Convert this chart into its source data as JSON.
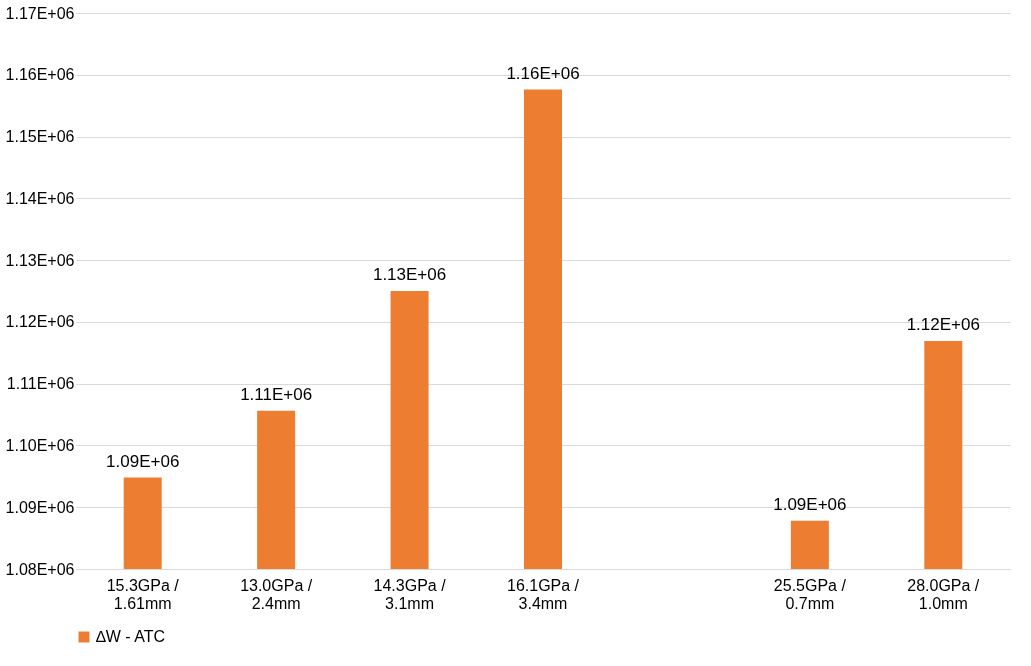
{
  "chart_data": {
    "type": "bar",
    "categories": [
      "15.3GPa /\n1.61mm",
      "13.0GPa /\n2.4mm",
      "14.3GPa /\n3.1mm",
      "16.1GPa /\n3.4mm",
      null,
      "25.5GPa /\n0.7mm",
      "28.0GPa /\n1.0mm"
    ],
    "series": [
      {
        "name": "∆W - ATC",
        "color": "#ed7d31",
        "values": [
          1094800,
          1105600,
          1125000,
          1157600,
          null,
          1087800,
          1116900
        ],
        "value_labels": [
          "1.09E+06",
          "1.11E+06",
          "1.13E+06",
          "1.16E+06",
          null,
          "1.09E+06",
          "1.12E+06"
        ]
      }
    ],
    "ylim": [
      1080000,
      1170000
    ],
    "yticks": [
      {
        "value": 1080000,
        "label": "1.08E+06"
      },
      {
        "value": 1090000,
        "label": "1.09E+06"
      },
      {
        "value": 1100000,
        "label": "1.10E+06"
      },
      {
        "value": 1110000,
        "label": "1.11E+06"
      },
      {
        "value": 1120000,
        "label": "1.12E+06"
      },
      {
        "value": 1130000,
        "label": "1.13E+06"
      },
      {
        "value": 1140000,
        "label": "1.14E+06"
      },
      {
        "value": 1150000,
        "label": "1.15E+06"
      },
      {
        "value": 1160000,
        "label": "1.16E+06"
      },
      {
        "value": 1170000,
        "label": "1.17E+06"
      }
    ],
    "grid": "y",
    "legend": "bottom"
  }
}
